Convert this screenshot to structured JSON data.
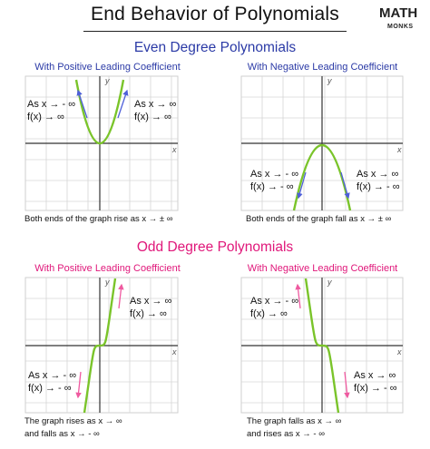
{
  "title": "End Behavior of Polynomials",
  "logo": {
    "line1": "MATH",
    "line2": "MONKS"
  },
  "colors": {
    "even_title": "#2b3aa6",
    "odd_title": "#e0177a",
    "curve": "#7ac42a",
    "arrow_blue": "#4e5fd9",
    "arrow_pink": "#ef5aa0",
    "grid": "#cfcfcf"
  },
  "even": {
    "title": "Even Degree Polynomials",
    "positive": {
      "subtitle": "With Positive Leading Coefficient",
      "note_left_1": "As x → - ∞",
      "note_left_2": "f(x) → ∞",
      "note_right_1": "As x → ∞",
      "note_right_2": "f(x) → ∞",
      "caption": "Both ends of the graph rise as x → ± ∞"
    },
    "negative": {
      "subtitle": "With Negative Leading Coefficient",
      "note_left_1": "As x → - ∞",
      "note_left_2": "f(x) → - ∞",
      "note_right_1": "As x → ∞",
      "note_right_2": "f(x) → - ∞",
      "caption": "Both ends of the graph fall as x → ± ∞"
    }
  },
  "odd": {
    "title": "Odd Degree Polynomials",
    "positive": {
      "subtitle": "With Positive Leading Coefficient",
      "note_top_1": "As x → ∞",
      "note_top_2": "f(x) → ∞",
      "note_bottom_1": "As x → - ∞",
      "note_bottom_2": "f(x) → - ∞",
      "caption_1": "The graph rises as x → ∞",
      "caption_2": "and falls as x → - ∞"
    },
    "negative": {
      "subtitle": "With Negative Leading Coefficient",
      "note_top_1": "As x → - ∞",
      "note_top_2": "f(x) → ∞",
      "note_bottom_1": "As x → ∞",
      "note_bottom_2": "f(x) → - ∞",
      "caption_1": "The graph falls as x → ∞",
      "caption_2": "and rises as x → - ∞"
    }
  },
  "axes": {
    "x": "x",
    "y": "y"
  }
}
